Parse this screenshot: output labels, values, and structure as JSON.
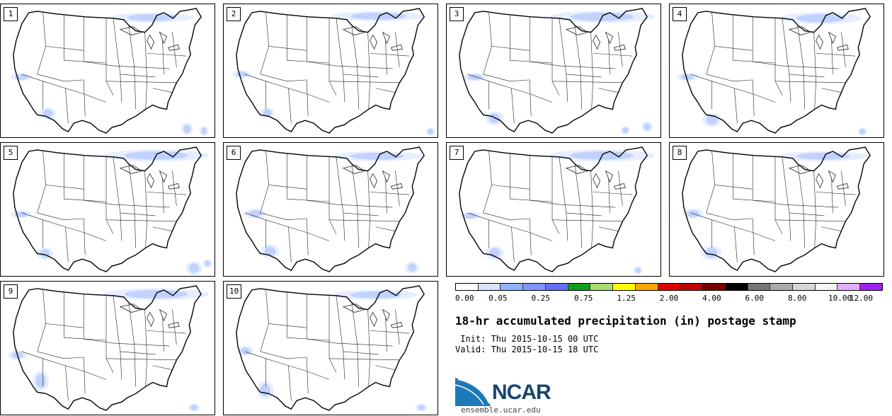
{
  "panels": [
    "1",
    "2",
    "3",
    "4",
    "5",
    "6",
    "7",
    "8",
    "9",
    "10"
  ],
  "colorbar": {
    "colors": [
      "#ffffff",
      "#d6e2ff",
      "#8eb2ff",
      "#7f96ff",
      "#6370f8",
      "#0e9f1e",
      "#a9d96f",
      "#ffff00",
      "#ffa500",
      "#e00000",
      "#c00000",
      "#7a0000",
      "#000000",
      "#777777",
      "#aaaaaa",
      "#d6d6d6",
      "#f5f5f5",
      "#e0b0ff",
      "#a020f0"
    ],
    "tick_labels": [
      "0.00",
      "0.05",
      "0.25",
      "0.75",
      "1.25",
      "2.00",
      "4.00",
      "6.00",
      "8.00",
      "10.00",
      "12.00"
    ]
  },
  "title": "18-hr accumulated precipitation (in) postage stamp",
  "init_line": " Init: Thu 2015-10-15 00 UTC",
  "valid_line": "Valid: Thu 2015-10-15 18 UTC",
  "logo": {
    "text": "NCAR",
    "site": "ensemble.ucar.edu"
  }
}
